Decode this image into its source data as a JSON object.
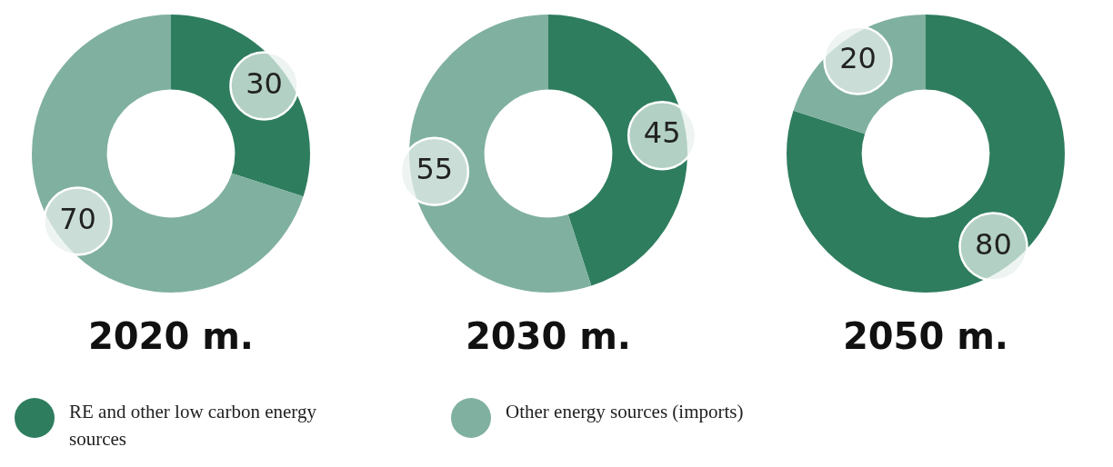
{
  "chart_data": [
    {
      "type": "donut",
      "title": "2020 m.",
      "categories": [
        "RE and other low carbon energy sources",
        "Other energy sources (imports)"
      ],
      "values": [
        30,
        70
      ],
      "colors": [
        "#2e7d5e",
        "#80b0a0"
      ],
      "data_labels": true,
      "legend": "bottom"
    },
    {
      "type": "donut",
      "title": "2030 m.",
      "values": [
        45,
        55
      ],
      "colors": [
        "#2e7d5e",
        "#80b0a0"
      ],
      "data_labels": true
    },
    {
      "type": "donut",
      "title": "2050 m.",
      "values": [
        80,
        20
      ],
      "colors": [
        "#2e7d5e",
        "#80b0a0"
      ],
      "data_labels": true
    }
  ]
}
